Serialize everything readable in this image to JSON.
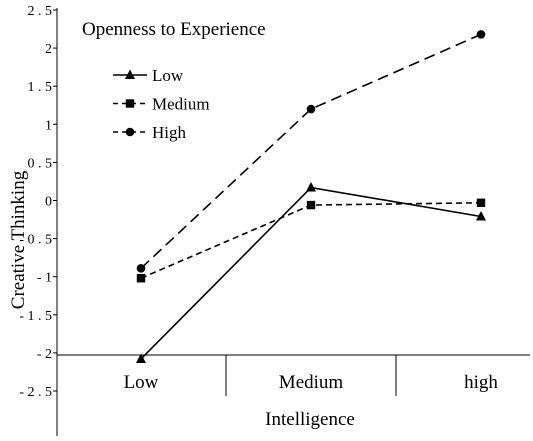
{
  "chart_data": {
    "type": "line",
    "title": "",
    "legend_title": "Openness to Experience",
    "legend_position": "top-left",
    "xlabel": "Intelligence",
    "ylabel": "Creative Thinking",
    "categories": [
      "Low",
      "Medium",
      "high"
    ],
    "ylim": [
      -2.5,
      2.5
    ],
    "yticks": [
      2.5,
      2,
      1.5,
      1,
      0.5,
      0,
      -0.5,
      -1,
      -1.5,
      -2,
      -2.5
    ],
    "ytick_labels": [
      "2 . 5",
      "2",
      "1 . 5",
      "1",
      "0 . 5",
      "0",
      "- 0 . 5",
      "- 1",
      "- 1 . 5",
      "- 2",
      "- 2 . 5"
    ],
    "grid": false,
    "series": [
      {
        "name": "Low",
        "marker": "triangle",
        "dash": "solid",
        "values": [
          -2.08,
          0.17,
          -0.21
        ]
      },
      {
        "name": "Medium",
        "marker": "square",
        "dash": "short-dash",
        "values": [
          -1.02,
          -0.06,
          -0.03
        ]
      },
      {
        "name": "High",
        "marker": "circle",
        "dash": "long-dash",
        "values": [
          -0.89,
          1.2,
          2.18
        ]
      }
    ]
  }
}
